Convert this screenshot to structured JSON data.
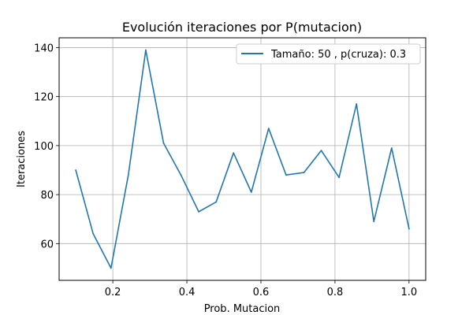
{
  "chart_data": {
    "type": "line",
    "title": "Evolución iteraciones por P(mutacion)",
    "xlabel": "Prob. Mutacion",
    "ylabel": "Iteraciones",
    "xlim": [
      0.055,
      1.045
    ],
    "ylim": [
      45,
      144
    ],
    "xticks": [
      0.2,
      0.4,
      0.6,
      0.8,
      1.0
    ],
    "xtick_labels": [
      "0.2",
      "0.4",
      "0.6",
      "0.8",
      "1.0"
    ],
    "yticks": [
      60,
      80,
      100,
      120,
      140
    ],
    "ytick_labels": [
      "60",
      "80",
      "100",
      "120",
      "140"
    ],
    "grid": true,
    "legend_position": "top-right",
    "series": [
      {
        "name": "Tamaño: 50 , p(cruza): 0.3",
        "color": "#1f77b4",
        "x": [
          0.1,
          0.147,
          0.195,
          0.242,
          0.289,
          0.337,
          0.384,
          0.432,
          0.479,
          0.526,
          0.574,
          0.621,
          0.668,
          0.716,
          0.763,
          0.811,
          0.858,
          0.905,
          0.953,
          1.0
        ],
        "y": [
          90,
          64,
          50,
          88,
          139,
          101,
          88,
          73,
          77,
          97,
          81,
          107,
          88,
          89,
          98,
          87,
          117,
          69,
          99,
          66
        ]
      }
    ]
  }
}
